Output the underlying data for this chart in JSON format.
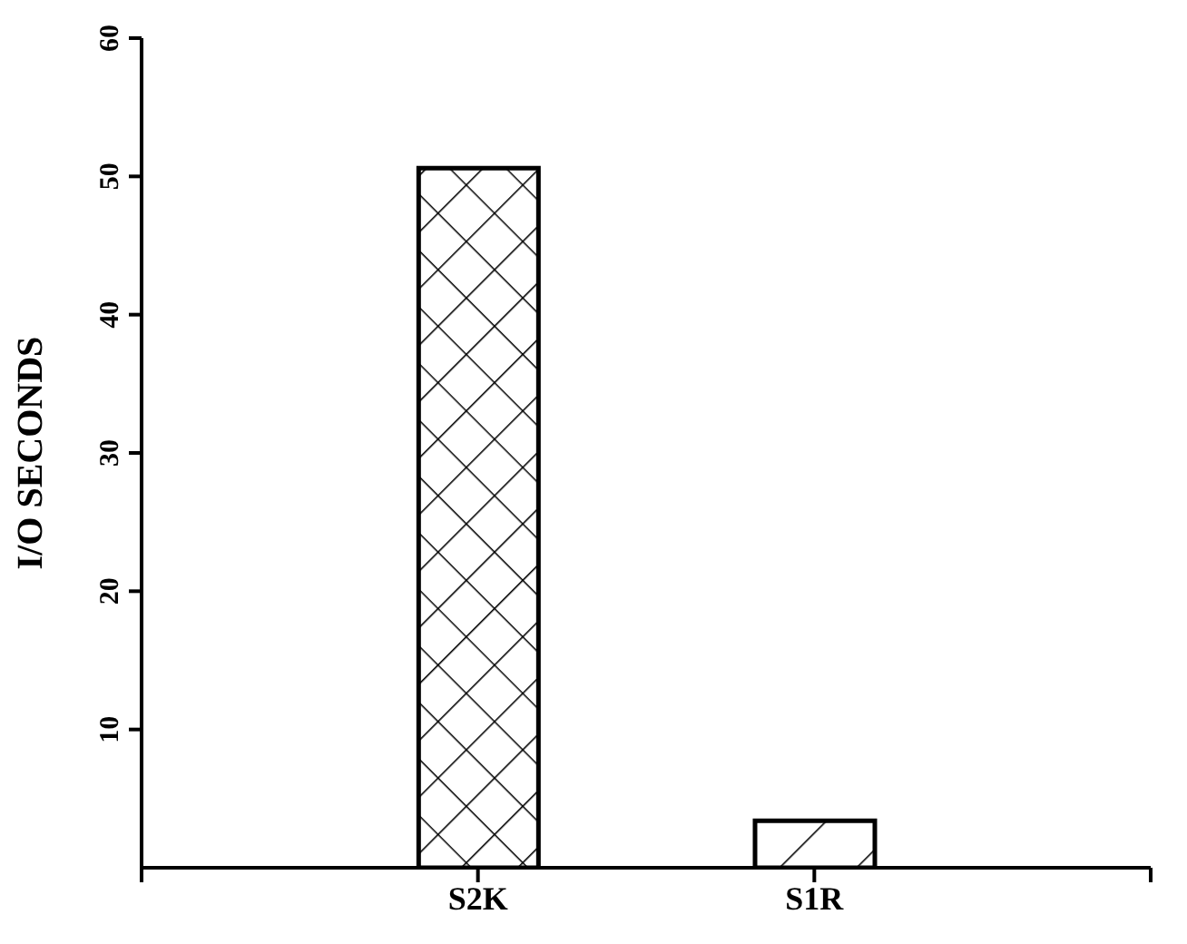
{
  "chart_data": {
    "type": "bar",
    "ylabel": "I/O SECONDS",
    "categories": [
      null,
      "S2K",
      "S1R",
      null
    ],
    "values": [
      null,
      50.6,
      3.4,
      null
    ],
    "colors": [
      "#000000",
      "#000000",
      "#000000",
      "#000000"
    ],
    "ylim": [
      0,
      60
    ],
    "yticks": [
      10,
      20,
      30,
      40,
      50,
      60
    ],
    "grid": false,
    "legend": false
  }
}
